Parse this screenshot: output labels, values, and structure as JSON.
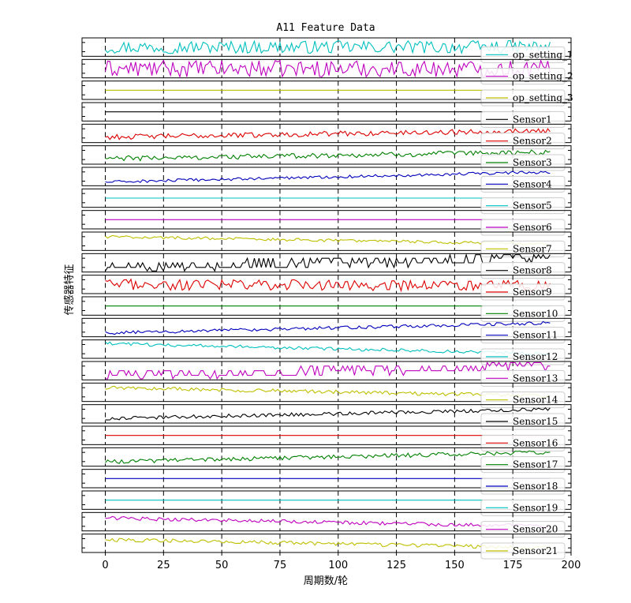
{
  "chart_data": {
    "type": "line",
    "title": "A11 Feature Data",
    "xlabel": "周期数/轮",
    "ylabel": "传感器特征",
    "xlim": [
      -10,
      200
    ],
    "x_ticks": [
      0,
      25,
      50,
      75,
      100,
      125,
      150,
      175,
      200
    ],
    "x_count": 192,
    "grid": "vertical dashed lines at x ticks",
    "legend_placement": "right",
    "series": [
      {
        "name": "op_setting_1",
        "color": "#00BFBF",
        "shape": "noise",
        "level": 0.5,
        "trend": 0.0,
        "noise": 0.35
      },
      {
        "name": "op_setting_2",
        "color": "#BF00BF",
        "shape": "noise",
        "level": 0.5,
        "trend": 0.0,
        "noise": 0.45
      },
      {
        "name": "op_setting_3",
        "color": "#BFBF00",
        "shape": "flat",
        "level": 0.5
      },
      {
        "name": "Sensor1",
        "color": "#000000",
        "shape": "flat",
        "level": 0.5
      },
      {
        "name": "Sensor2",
        "color": "#DD0000",
        "shape": "noise",
        "level": 0.3,
        "trend": 0.35,
        "noise": 0.14
      },
      {
        "name": "Sensor3",
        "color": "#008000",
        "shape": "noise",
        "level": 0.3,
        "trend": 0.35,
        "noise": 0.14
      },
      {
        "name": "Sensor4",
        "color": "#0000BB",
        "shape": "noise",
        "level": 0.2,
        "trend": 0.55,
        "noise": 0.08
      },
      {
        "name": "Sensor5",
        "color": "#00BFBF",
        "shape": "flat",
        "level": 0.5
      },
      {
        "name": "Sensor6",
        "color": "#BF00BF",
        "shape": "flat",
        "level": 0.5
      },
      {
        "name": "Sensor7",
        "color": "#BFBF00",
        "shape": "noise",
        "level": 0.75,
        "trend": -0.4,
        "noise": 0.08
      },
      {
        "name": "Sensor8",
        "color": "#000000",
        "shape": "discrete",
        "level": 0.15,
        "trend": 0.55,
        "noise": 0.3
      },
      {
        "name": "Sensor9",
        "color": "#DD0000",
        "shape": "noise",
        "level": 0.5,
        "trend": -0.1,
        "noise": 0.3
      },
      {
        "name": "Sensor10",
        "color": "#008000",
        "shape": "flat",
        "level": 0.5
      },
      {
        "name": "Sensor11",
        "color": "#0000BB",
        "shape": "noise",
        "level": 0.2,
        "trend": 0.55,
        "noise": 0.09
      },
      {
        "name": "Sensor12",
        "color": "#00BFBF",
        "shape": "noise",
        "level": 0.8,
        "trend": -0.55,
        "noise": 0.09
      },
      {
        "name": "Sensor13",
        "color": "#BF00BF",
        "shape": "discrete",
        "level": 0.12,
        "trend": 0.6,
        "noise": 0.25
      },
      {
        "name": "Sensor14",
        "color": "#BFBF00",
        "shape": "noise",
        "level": 0.75,
        "trend": -0.45,
        "noise": 0.1
      },
      {
        "name": "Sensor15",
        "color": "#000000",
        "shape": "noise",
        "level": 0.25,
        "trend": 0.5,
        "noise": 0.1
      },
      {
        "name": "Sensor16",
        "color": "#DD0000",
        "shape": "flat",
        "level": 0.5
      },
      {
        "name": "Sensor17",
        "color": "#008000",
        "shape": "noise",
        "level": 0.25,
        "trend": 0.5,
        "noise": 0.12
      },
      {
        "name": "Sensor18",
        "color": "#0000BB",
        "shape": "flat",
        "level": 0.5
      },
      {
        "name": "Sensor19",
        "color": "#00BFBF",
        "shape": "flat",
        "level": 0.5
      },
      {
        "name": "Sensor20",
        "color": "#BF00BF",
        "shape": "noise",
        "level": 0.7,
        "trend": -0.45,
        "noise": 0.1
      },
      {
        "name": "Sensor21",
        "color": "#BFBF00",
        "shape": "noise",
        "level": 0.7,
        "trend": -0.45,
        "noise": 0.1
      }
    ]
  }
}
